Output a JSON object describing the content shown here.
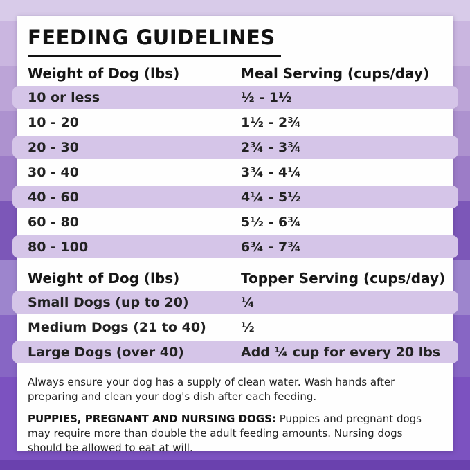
{
  "title": "FEEDING GUIDELINES",
  "meal_table": {
    "col1_header": "Weight of Dog (lbs)",
    "col2_header": "Meal Serving (cups/day)",
    "rows": [
      {
        "weight": "10 or less",
        "serving": "½ - 1½"
      },
      {
        "weight": "10 - 20",
        "serving": "1½ - 2¾"
      },
      {
        "weight": "20 - 30",
        "serving": "2¾ - 3¾"
      },
      {
        "weight": "30 - 40",
        "serving": "3¾ - 4¼"
      },
      {
        "weight": "40 - 60",
        "serving": "4¼ - 5½"
      },
      {
        "weight": "60 - 80",
        "serving": "5½ - 6¾"
      },
      {
        "weight": "80 - 100",
        "serving": "6¾ - 7¾"
      }
    ]
  },
  "topper_table": {
    "col1_header": "Weight of Dog (lbs)",
    "col2_header": "Topper Serving (cups/day)",
    "rows": [
      {
        "weight": "Small Dogs (up to 20)",
        "serving": "¼"
      },
      {
        "weight": "Medium Dogs (21 to 40)",
        "serving": "½"
      },
      {
        "weight": "Large Dogs (over 40)",
        "serving": "Add ¼ cup for every 20 lbs"
      }
    ]
  },
  "notes": {
    "water_note": "Always ensure your dog has a supply of clean water. Wash hands after preparing and clean your dog's dish after each feeding.",
    "special_label": "PUPPIES, PREGNANT AND NURSING DOGS:",
    "special_text": "Puppies and pregnant dogs may require more than double the adult feeding amounts. Nursing dogs should be allowed to eat at will."
  },
  "colors": {
    "row_highlight": "#d5c5e8",
    "card_background": "#fefefe",
    "text": "#1d1d1d",
    "border_purple_light": "#d8cbe9",
    "border_purple_dark": "#6a41ae",
    "border_purple_accent": "#7c52c0"
  }
}
